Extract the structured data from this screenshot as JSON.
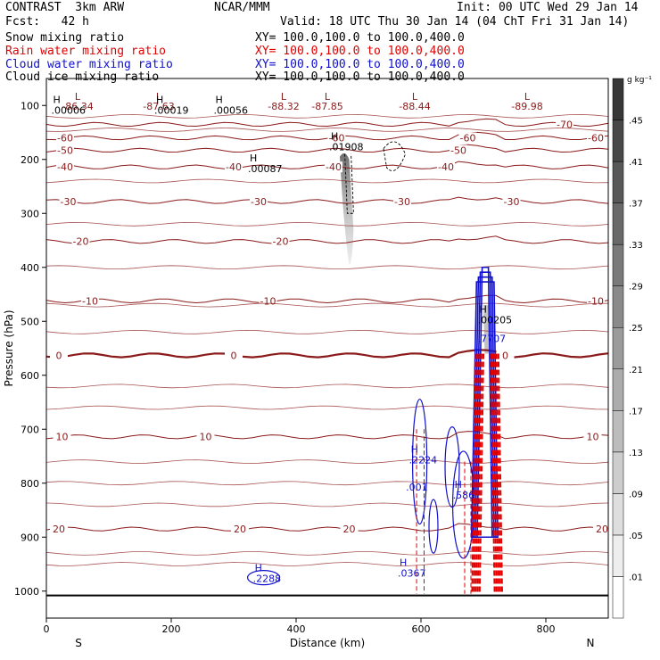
{
  "header": {
    "model": "CONTRAST  3km ARW",
    "org": "NCAR/MMM",
    "init": "Init: 00 UTC Wed 29 Jan 14",
    "fcst": "Fcst:   42 h",
    "valid": "Valid: 18 UTC Thu 30 Jan 14 (04 ChT Fri 31 Jan 14)",
    "fields": [
      {
        "name": "Snow mixing ratio",
        "xy": "XY= 100.0,100.0 to 100.0,400.0",
        "color": "#000000"
      },
      {
        "name": "Rain water mixing ratio",
        "xy": "XY= 100.0,100.0 to 100.0,400.0",
        "color": "#e00000"
      },
      {
        "name": "Cloud water mixing ratio",
        "xy": "XY= 100.0,100.0 to 100.0,400.0",
        "color": "#1010cc"
      },
      {
        "name": "Cloud ice mixing ratio",
        "xy": "XY= 100.0,100.0 to 100.0,400.0",
        "color": "#000000"
      }
    ]
  },
  "chart_data": {
    "type": "cross-section",
    "xlabel": "Distance (km)",
    "ylabel": "Pressure (hPa)",
    "xlim": [
      0,
      900
    ],
    "ylim": [
      1050,
      50
    ],
    "xticks": [
      0,
      200,
      400,
      600,
      800
    ],
    "yticks": [
      100,
      200,
      300,
      400,
      500,
      600,
      700,
      800,
      900,
      1000
    ],
    "endpoints": {
      "left": "S",
      "right": "N"
    },
    "colorbar": {
      "unit": "g kg⁻¹",
      "levels": [
        ".01",
        ".05",
        ".09",
        ".13",
        ".17",
        ".21",
        ".25",
        ".29",
        ".33",
        ".37",
        ".41",
        ".45"
      ]
    },
    "temperature_isotherms": [
      {
        "label": "-70",
        "p": 135,
        "labels_x": [
          830
        ]
      },
      {
        "label": "-60",
        "p": 160,
        "labels_x": [
          30,
          465,
          675,
          880
        ]
      },
      {
        "label": "-50",
        "p": 183,
        "labels_x": [
          30,
          660
        ]
      },
      {
        "label": "-40",
        "p": 214,
        "labels_x": [
          30,
          300,
          460,
          640
        ]
      },
      {
        "label": "-30",
        "p": 278,
        "labels_x": [
          35,
          340,
          570,
          745
        ]
      },
      {
        "label": "-20",
        "p": 352,
        "labels_x": [
          55,
          375
        ]
      },
      {
        "label": "-10",
        "p": 462,
        "labels_x": [
          70,
          355,
          880
        ]
      },
      {
        "label": "0",
        "p": 563,
        "labels_x": [
          20,
          300,
          735
        ]
      },
      {
        "label": "10",
        "p": 714,
        "labels_x": [
          25,
          255,
          875
        ]
      },
      {
        "label": "20",
        "p": 885,
        "labels_x": [
          20,
          310,
          485,
          890
        ]
      }
    ],
    "top_minima": [
      {
        "label": "L",
        "value": "-86.34",
        "x": 50
      },
      {
        "label": "L",
        "value": "-87.63",
        "x": 180
      },
      {
        "label": "L",
        "value": "-88.32",
        "x": 380
      },
      {
        "label": "L",
        "value": "-87.85",
        "x": 450
      },
      {
        "label": "L",
        "value": "-88.44",
        "x": 590
      },
      {
        "label": "L",
        "value": "-89.98",
        "x": 770
      }
    ],
    "field_maxima": [
      {
        "field": "snow",
        "label": "H",
        "value": ".00006",
        "x": 25,
        "p": 112
      },
      {
        "field": "snow",
        "label": "H",
        "value": ".00019",
        "x": 190,
        "p": 112
      },
      {
        "field": "snow",
        "label": "H",
        "value": ".00056",
        "x": 285,
        "p": 112
      },
      {
        "field": "snow",
        "label": "H",
        "value": ".01908",
        "x": 470,
        "p": 180
      },
      {
        "field": "snow",
        "label": "H",
        "value": ".00087",
        "x": 340,
        "p": 220
      },
      {
        "field": "ice",
        "label": "H",
        "value": ".00205",
        "x": 708,
        "p": 500
      },
      {
        "field": "cloud",
        "label": "",
        "value": ".7707",
        "x": 708,
        "p": 535
      },
      {
        "field": "cloud",
        "label": "H",
        "value": ".2224",
        "x": 598,
        "p": 760
      },
      {
        "field": "cloud",
        "label": "",
        "value": ".001",
        "x": 593,
        "p": 810
      },
      {
        "field": "cloud",
        "label": "H",
        "value": ".586",
        "x": 668,
        "p": 825
      },
      {
        "field": "cloud",
        "label": "H",
        "value": ".2288",
        "x": 348,
        "p": 980
      },
      {
        "field": "cloud",
        "label": "H",
        "value": ".0367",
        "x": 580,
        "p": 970
      }
    ]
  }
}
